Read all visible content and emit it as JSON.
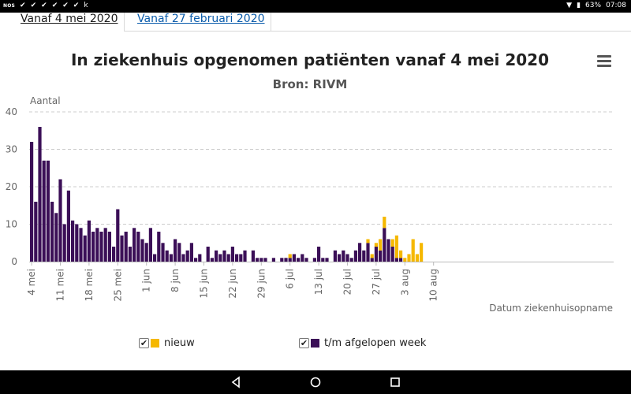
{
  "status_bar": {
    "left_label": "NOS",
    "letter": "k",
    "battery": "63%",
    "time": "07:08"
  },
  "tabs": [
    {
      "label": "Vanaf 4 mei 2020",
      "active": true
    },
    {
      "label": "Vanaf 27 februari 2020",
      "active": false
    }
  ],
  "colors": {
    "nieuw": "#f5b800",
    "week": "#3b0f57",
    "grid": "#cccccc",
    "axis_text": "#666666"
  },
  "chart_data": {
    "type": "bar",
    "stacked": true,
    "title": "In ziekenhuis opgenomen patiënten vanaf 4 mei 2020",
    "subtitle": "Bron: RIVM",
    "ylabel": "Aantal",
    "xlabel": "Datum ziekenhuisopname",
    "ylim": [
      0,
      40
    ],
    "yticks": [
      0,
      10,
      20,
      30,
      40
    ],
    "x_start": "4 mei",
    "xtick_labels": [
      "4 mei",
      "11 mei",
      "18 mei",
      "25 mei",
      "1 jun",
      "8 jun",
      "15 jun",
      "22 jun",
      "29 jun",
      "6 jul",
      "13 jul",
      "20 jul",
      "27 jul",
      "3 aug",
      "10 aug"
    ],
    "xtick_day_index": [
      0,
      7,
      14,
      21,
      28,
      35,
      42,
      49,
      56,
      63,
      70,
      77,
      84,
      91,
      98
    ],
    "series": [
      {
        "name": "t/m afgelopen week",
        "values": [
          32,
          16,
          36,
          27,
          27,
          16,
          13,
          22,
          10,
          19,
          11,
          10,
          9,
          7,
          11,
          8,
          9,
          8,
          9,
          8,
          4,
          14,
          7,
          8,
          4,
          9,
          8,
          6,
          5,
          9,
          2,
          8,
          5,
          3,
          2,
          6,
          5,
          2,
          3,
          5,
          1,
          2,
          0,
          4,
          1,
          3,
          2,
          3,
          2,
          4,
          2,
          2,
          3,
          0,
          3,
          1,
          1,
          1,
          0,
          1,
          0,
          1,
          1,
          1,
          2,
          1,
          2,
          1,
          0,
          1,
          4,
          1,
          1,
          0,
          3,
          2,
          3,
          2,
          1,
          3,
          5,
          3,
          5,
          1,
          4,
          3,
          9,
          6,
          4,
          1,
          1,
          0,
          0,
          0,
          0,
          0,
          0,
          0,
          0
        ],
        "color": "#3b0f57"
      },
      {
        "name": "nieuw",
        "values": [
          0,
          0,
          0,
          0,
          0,
          0,
          0,
          0,
          0,
          0,
          0,
          0,
          0,
          0,
          0,
          0,
          0,
          0,
          0,
          0,
          0,
          0,
          0,
          0,
          0,
          0,
          0,
          0,
          0,
          0,
          0,
          0,
          0,
          0,
          0,
          0,
          0,
          0,
          0,
          0,
          0,
          0,
          0,
          0,
          0,
          0,
          0,
          0,
          0,
          0,
          0,
          0,
          0,
          0,
          0,
          0,
          0,
          0,
          0,
          0,
          0,
          0,
          0,
          1,
          0,
          0,
          0,
          0,
          0,
          0,
          0,
          0,
          0,
          0,
          0,
          0,
          0,
          0,
          0,
          0,
          0,
          0,
          1,
          1,
          1,
          3,
          3,
          0,
          2,
          6,
          2,
          1,
          2,
          6,
          2,
          5,
          0,
          0,
          0
        ],
        "color": "#f5b800"
      }
    ],
    "legend": [
      {
        "label": "nieuw",
        "checked": true
      },
      {
        "label": "t/m afgelopen week",
        "checked": true
      }
    ]
  }
}
